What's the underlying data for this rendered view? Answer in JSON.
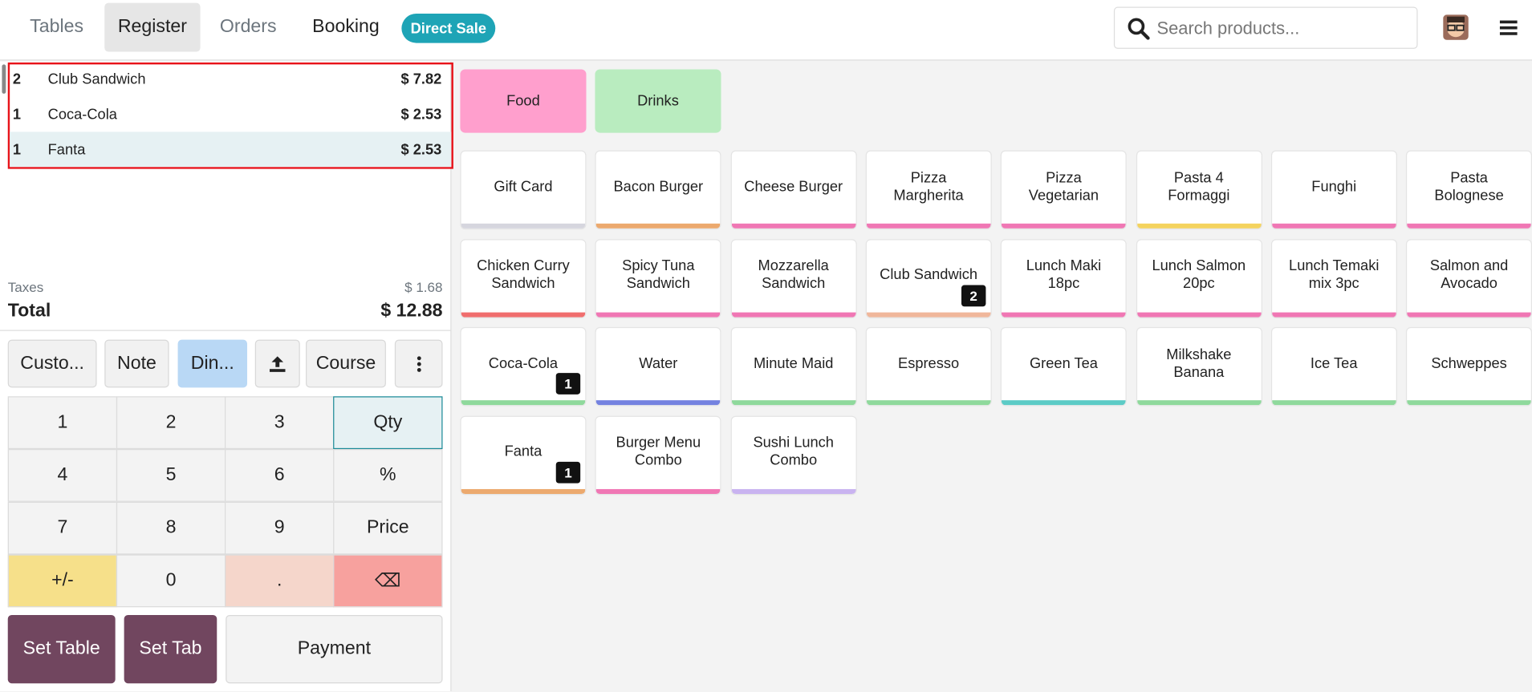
{
  "top_bar": {
    "tabs": [
      "Tables",
      "Register",
      "Orders",
      "Booking"
    ],
    "direct_sale": "Direct Sale",
    "search_placeholder": "Search products..."
  },
  "order_lines": [
    {
      "qty": 2,
      "name": "Club Sandwich",
      "price": "$ 7.82"
    },
    {
      "qty": 1,
      "name": "Coca-Cola",
      "price": "$ 2.53"
    },
    {
      "qty": 1,
      "name": "Fanta",
      "price": "$ 2.53"
    }
  ],
  "taxes": {
    "label": "Taxes",
    "value": "$ 1.68"
  },
  "total": {
    "label": "Total",
    "value": "$ 12.88"
  },
  "actions": [
    "Custo...",
    "Note",
    "Din...",
    "Course"
  ],
  "numpad": [
    [
      "1",
      "2",
      "3",
      "Qty"
    ],
    [
      "4",
      "5",
      "6",
      "%"
    ],
    [
      "7",
      "8",
      "9",
      "Price"
    ],
    [
      "+/-",
      "0",
      ".",
      "⌫"
    ]
  ],
  "bottom_buttons": [
    "Set Table",
    "Set Tab",
    "Payment"
  ],
  "categories": [
    {
      "name": "Food",
      "color": "#ff9fcd"
    },
    {
      "name": "Drinks",
      "color": "#b9ecbf"
    }
  ],
  "products": [
    {
      "name": "Gift Card",
      "color": "#d6d6de"
    },
    {
      "name": "Bacon Burger",
      "color": "#eca96e"
    },
    {
      "name": "Cheese Burger",
      "color": "#f077b4"
    },
    {
      "name": "Pizza Margherita",
      "color": "#f077b4"
    },
    {
      "name": "Pizza Vegetarian",
      "color": "#f077b4"
    },
    {
      "name": "Pasta 4 Formaggi",
      "color": "#f4d35e"
    },
    {
      "name": "Funghi",
      "color": "#f077b4"
    },
    {
      "name": "Pasta Bolognese",
      "color": "#f077b4"
    },
    {
      "name": "Chicken Curry Sandwich",
      "color": "#f06e6e"
    },
    {
      "name": "Spicy Tuna Sandwich",
      "color": "#f077b4"
    },
    {
      "name": "Mozzarella Sandwich",
      "color": "#f077b4"
    },
    {
      "name": "Club Sandwich",
      "color": "#f0b79b",
      "badge": 2
    },
    {
      "name": "Lunch Maki 18pc",
      "color": "#f077b4"
    },
    {
      "name": "Lunch Salmon 20pc",
      "color": "#f077b4"
    },
    {
      "name": "Lunch Temaki mix 3pc",
      "color": "#f077b4"
    },
    {
      "name": "Salmon and Avocado",
      "color": "#f077b4"
    },
    {
      "name": "Coca-Cola",
      "color": "#8fd99c",
      "badge": 1
    },
    {
      "name": "Water",
      "color": "#7482e0"
    },
    {
      "name": "Minute Maid",
      "color": "#8fd99c"
    },
    {
      "name": "Espresso",
      "color": "#8fd99c"
    },
    {
      "name": "Green Tea",
      "color": "#5ccbc6"
    },
    {
      "name": "Milkshake Banana",
      "color": "#8fd99c"
    },
    {
      "name": "Ice Tea",
      "color": "#8fd99c"
    },
    {
      "name": "Schweppes",
      "color": "#8fd99c"
    },
    {
      "name": "Fanta",
      "color": "#eca96e",
      "badge": 1
    },
    {
      "name": "Burger Menu Combo",
      "color": "#f077b4"
    },
    {
      "name": "Sushi Lunch Combo",
      "color": "#c9b3f0"
    }
  ]
}
